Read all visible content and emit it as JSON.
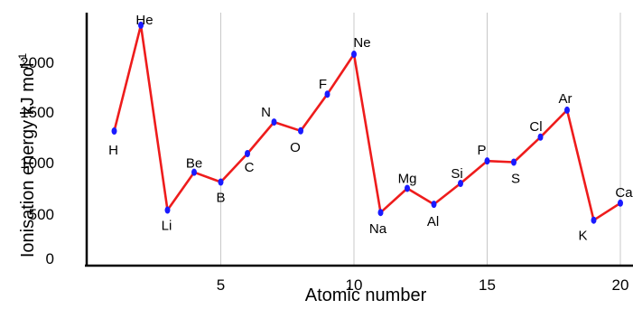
{
  "chart_data": {
    "type": "line",
    "title": "",
    "xlabel": "Atomic number",
    "ylabel": "Ionisation energy kJ mol",
    "ylabel_superscript": "-1",
    "xlim": [
      0,
      20.2
    ],
    "ylim": [
      0,
      2500
    ],
    "xticks": [
      5,
      10,
      15,
      20
    ],
    "yticks": [
      0,
      500,
      1000,
      1500,
      2000
    ],
    "grid": "vertical",
    "colors": {
      "line": "#ee1c1c",
      "marker": "#1a1aff",
      "grid": "#c8c8c8",
      "axis": "#000000"
    },
    "series": [
      {
        "points": [
          {
            "x": 1,
            "y": 1312,
            "label": "H"
          },
          {
            "x": 2,
            "y": 2372,
            "label": "He"
          },
          {
            "x": 3,
            "y": 520,
            "label": "Li"
          },
          {
            "x": 4,
            "y": 899,
            "label": "Be"
          },
          {
            "x": 5,
            "y": 801,
            "label": "B"
          },
          {
            "x": 6,
            "y": 1086,
            "label": "C"
          },
          {
            "x": 7,
            "y": 1402,
            "label": "N"
          },
          {
            "x": 8,
            "y": 1314,
            "label": "O"
          },
          {
            "x": 9,
            "y": 1681,
            "label": "F"
          },
          {
            "x": 10,
            "y": 2081,
            "label": "Ne"
          },
          {
            "x": 11,
            "y": 496,
            "label": "Na"
          },
          {
            "x": 12,
            "y": 738,
            "label": "Mg"
          },
          {
            "x": 13,
            "y": 578,
            "label": "Al"
          },
          {
            "x": 14,
            "y": 787,
            "label": "Si"
          },
          {
            "x": 15,
            "y": 1012,
            "label": "P"
          },
          {
            "x": 16,
            "y": 1000,
            "label": "S"
          },
          {
            "x": 17,
            "y": 1251,
            "label": "Cl"
          },
          {
            "x": 18,
            "y": 1521,
            "label": "Ar"
          },
          {
            "x": 19,
            "y": 419,
            "label": "K"
          },
          {
            "x": 20,
            "y": 590,
            "label": "Ca"
          }
        ]
      }
    ]
  }
}
